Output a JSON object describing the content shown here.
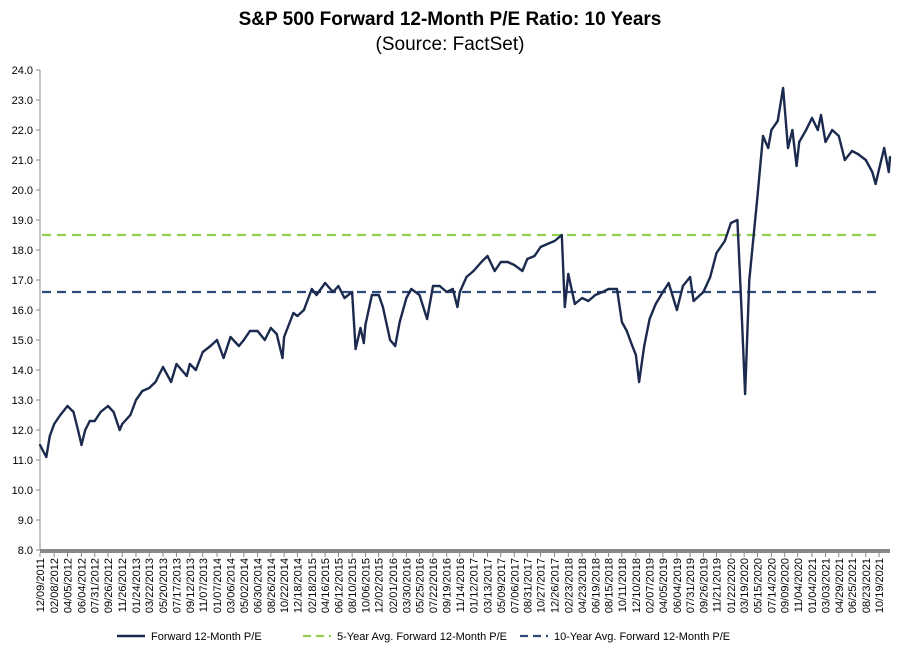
{
  "chart_data": {
    "type": "line",
    "title": "S&P 500 Forward 12-Month P/E Ratio: 10 Years",
    "subtitle": "(Source: FactSet)",
    "ylim": [
      8.0,
      24.0
    ],
    "y_ticks": [
      "8.0",
      "9.0",
      "10.0",
      "11.0",
      "12.0",
      "13.0",
      "14.0",
      "15.0",
      "16.0",
      "17.0",
      "18.0",
      "19.0",
      "20.0",
      "21.0",
      "22.0",
      "23.0",
      "24.0"
    ],
    "x_ticks": [
      "12/09/2011",
      "02/08/2012",
      "04/05/2012",
      "06/04/2012",
      "07/31/2012",
      "09/26/2012",
      "11/26/2012",
      "01/24/2013",
      "03/22/2013",
      "05/20/2013",
      "07/17/2013",
      "09/12/2013",
      "11/07/2013",
      "01/07/2014",
      "03/06/2014",
      "05/02/2014",
      "06/30/2014",
      "08/26/2014",
      "10/22/2014",
      "12/18/2014",
      "02/18/2015",
      "04/16/2015",
      "06/12/2015",
      "08/10/2015",
      "10/06/2015",
      "12/02/2015",
      "02/01/2016",
      "03/30/2016",
      "05/25/2016",
      "07/22/2016",
      "09/19/2016",
      "11/14/2016",
      "01/12/2017",
      "03/13/2017",
      "05/09/2017",
      "07/06/2017",
      "08/31/2017",
      "10/27/2017",
      "12/26/2017",
      "02/23/2018",
      "04/23/2018",
      "06/19/2018",
      "08/15/2018",
      "10/11/2018",
      "12/10/2018",
      "02/07/2019",
      "04/05/2019",
      "06/04/2019",
      "07/31/2019",
      "09/26/2019",
      "11/21/2019",
      "01/22/2020",
      "03/19/2020",
      "05/15/2020",
      "07/14/2020",
      "09/09/2020",
      "11/04/2020",
      "01/04/2021",
      "03/03/2021",
      "04/29/2021",
      "06/25/2021",
      "08/23/2021",
      "10/19/2021"
    ],
    "series": [
      {
        "name": "Forward 12-Month P/E",
        "color": "#1b2a4e",
        "style": "solid",
        "points": [
          [
            "12/09/2011",
            11.5
          ],
          [
            "01/05/2012",
            11.1
          ],
          [
            "01/20/2012",
            11.8
          ],
          [
            "02/08/2012",
            12.2
          ],
          [
            "03/05/2012",
            12.5
          ],
          [
            "04/05/2012",
            12.8
          ],
          [
            "05/01/2012",
            12.6
          ],
          [
            "05/20/2012",
            12.0
          ],
          [
            "06/04/2012",
            11.5
          ],
          [
            "06/20/2012",
            12.0
          ],
          [
            "07/10/2012",
            12.3
          ],
          [
            "07/31/2012",
            12.3
          ],
          [
            "08/25/2012",
            12.6
          ],
          [
            "09/26/2012",
            12.8
          ],
          [
            "10/20/2012",
            12.6
          ],
          [
            "11/15/2012",
            12.0
          ],
          [
            "11/26/2012",
            12.2
          ],
          [
            "12/31/2012",
            12.5
          ],
          [
            "01/24/2013",
            13.0
          ],
          [
            "02/20/2013",
            13.3
          ],
          [
            "03/22/2013",
            13.4
          ],
          [
            "04/18/2013",
            13.6
          ],
          [
            "05/20/2013",
            14.1
          ],
          [
            "06/24/2013",
            13.6
          ],
          [
            "07/17/2013",
            14.2
          ],
          [
            "08/30/2013",
            13.8
          ],
          [
            "09/12/2013",
            14.2
          ],
          [
            "10/08/2013",
            14.0
          ],
          [
            "11/07/2013",
            14.6
          ],
          [
            "12/10/2013",
            14.8
          ],
          [
            "01/07/2014",
            15.0
          ],
          [
            "02/04/2014",
            14.4
          ],
          [
            "03/06/2014",
            15.1
          ],
          [
            "04/11/2014",
            14.8
          ],
          [
            "05/02/2014",
            15.0
          ],
          [
            "05/28/2014",
            15.3
          ],
          [
            "06/30/2014",
            15.3
          ],
          [
            "07/31/2014",
            15.0
          ],
          [
            "08/26/2014",
            15.4
          ],
          [
            "09/20/2014",
            15.2
          ],
          [
            "10/15/2014",
            14.4
          ],
          [
            "10/22/2014",
            15.1
          ],
          [
            "12/01/2014",
            15.9
          ],
          [
            "12/18/2014",
            15.8
          ],
          [
            "01/15/2015",
            16.0
          ],
          [
            "02/18/2015",
            16.7
          ],
          [
            "03/10/2015",
            16.5
          ],
          [
            "04/16/2015",
            16.9
          ],
          [
            "05/20/2015",
            16.6
          ],
          [
            "06/12/2015",
            16.8
          ],
          [
            "07/08/2015",
            16.4
          ],
          [
            "08/10/2015",
            16.6
          ],
          [
            "08/25/2015",
            14.7
          ],
          [
            "09/15/2015",
            15.4
          ],
          [
            "09/29/2015",
            14.9
          ],
          [
            "10/06/2015",
            15.5
          ],
          [
            "11/03/2015",
            16.5
          ],
          [
            "12/02/2015",
            16.5
          ],
          [
            "12/20/2015",
            16.1
          ],
          [
            "01/20/2016",
            15.0
          ],
          [
            "02/11/2016",
            14.8
          ],
          [
            "03/01/2016",
            15.6
          ],
          [
            "03/30/2016",
            16.4
          ],
          [
            "04/20/2016",
            16.7
          ],
          [
            "05/25/2016",
            16.5
          ],
          [
            "06/27/2016",
            15.7
          ],
          [
            "07/22/2016",
            16.8
          ],
          [
            "08/20/2016",
            16.8
          ],
          [
            "09/19/2016",
            16.6
          ],
          [
            "10/15/2016",
            16.7
          ],
          [
            "11/04/2016",
            16.1
          ],
          [
            "11/14/2016",
            16.6
          ],
          [
            "12/13/2016",
            17.1
          ],
          [
            "01/12/2017",
            17.3
          ],
          [
            "02/15/2017",
            17.6
          ],
          [
            "03/13/2017",
            17.8
          ],
          [
            "04/13/2017",
            17.3
          ],
          [
            "05/09/2017",
            17.6
          ],
          [
            "06/08/2017",
            17.6
          ],
          [
            "07/06/2017",
            17.5
          ],
          [
            "08/10/2017",
            17.3
          ],
          [
            "08/31/2017",
            17.7
          ],
          [
            "10/01/2017",
            17.8
          ],
          [
            "10/27/2017",
            18.1
          ],
          [
            "11/25/2017",
            18.2
          ],
          [
            "12/26/2017",
            18.3
          ],
          [
            "01/26/2018",
            18.5
          ],
          [
            "02/08/2018",
            16.1
          ],
          [
            "02/23/2018",
            17.2
          ],
          [
            "03/23/2018",
            16.2
          ],
          [
            "04/23/2018",
            16.4
          ],
          [
            "05/20/2018",
            16.3
          ],
          [
            "06/19/2018",
            16.5
          ],
          [
            "07/20/2018",
            16.6
          ],
          [
            "08/15/2018",
            16.7
          ],
          [
            "09/20/2018",
            16.7
          ],
          [
            "10/11/2018",
            15.6
          ],
          [
            "11/01/2018",
            15.3
          ],
          [
            "11/20/2018",
            14.9
          ],
          [
            "12/10/2018",
            14.5
          ],
          [
            "12/24/2018",
            13.6
          ],
          [
            "01/15/2019",
            14.8
          ],
          [
            "02/07/2019",
            15.7
          ],
          [
            "03/05/2019",
            16.2
          ],
          [
            "04/05/2019",
            16.6
          ],
          [
            "04/30/2019",
            16.9
          ],
          [
            "06/04/2019",
            16.0
          ],
          [
            "06/30/2019",
            16.8
          ],
          [
            "07/31/2019",
            17.1
          ],
          [
            "08/15/2019",
            16.3
          ],
          [
            "09/26/2019",
            16.6
          ],
          [
            "10/25/2019",
            17.1
          ],
          [
            "11/21/2019",
            17.9
          ],
          [
            "12/27/2019",
            18.3
          ],
          [
            "01/22/2020",
            18.9
          ],
          [
            "02/19/2020",
            19.0
          ],
          [
            "03/09/2020",
            15.8
          ],
          [
            "03/23/2020",
            13.2
          ],
          [
            "04/10/2020",
            17.0
          ],
          [
            "05/15/2020",
            19.8
          ],
          [
            "06/08/2020",
            21.8
          ],
          [
            "06/30/2020",
            21.4
          ],
          [
            "07/14/2020",
            22.0
          ],
          [
            "08/10/2020",
            22.3
          ],
          [
            "09/02/2020",
            23.4
          ],
          [
            "09/23/2020",
            21.4
          ],
          [
            "10/12/2020",
            22.0
          ],
          [
            "10/30/2020",
            20.8
          ],
          [
            "11/10/2020",
            21.6
          ],
          [
            "12/10/2020",
            22.0
          ],
          [
            "01/04/2021",
            22.4
          ],
          [
            "01/29/2021",
            22.0
          ],
          [
            "02/12/2021",
            22.5
          ],
          [
            "03/03/2021",
            21.6
          ],
          [
            "04/01/2021",
            22.0
          ],
          [
            "04/29/2021",
            21.8
          ],
          [
            "05/25/2021",
            21.0
          ],
          [
            "06/25/2021",
            21.3
          ],
          [
            "07/20/2021",
            21.2
          ],
          [
            "08/23/2021",
            21.0
          ],
          [
            "09/20/2021",
            20.6
          ],
          [
            "10/04/2021",
            20.2
          ],
          [
            "10/19/2021",
            20.7
          ],
          [
            "11/10/2021",
            21.4
          ],
          [
            "11/30/2021",
            20.6
          ],
          [
            "12/05/2021",
            21.1
          ]
        ]
      },
      {
        "name": "5-Year Avg. Forward 12-Month P/E",
        "color": "#92d050",
        "style": "dashed",
        "value": 18.5
      },
      {
        "name": "10-Year Avg. Forward 12-Month P/E",
        "color": "#2e4a7a",
        "style": "dashed",
        "value": 16.6
      }
    ],
    "legend": "bottom"
  }
}
